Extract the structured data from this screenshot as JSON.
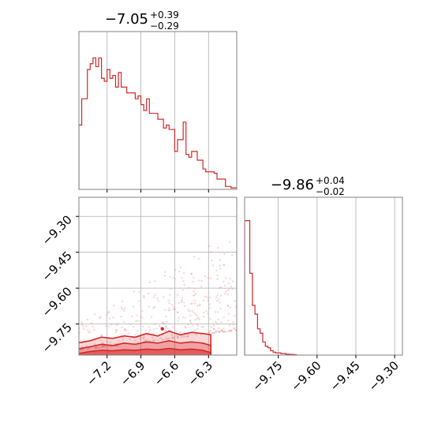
{
  "chart_data": {
    "type": "corner",
    "color": "#d62728",
    "grid": true,
    "panels": [
      {
        "id": "hist-1",
        "type": "histogram",
        "title_main": "−7.05",
        "title_plus": "+0.39",
        "title_minus": "−0.29",
        "xlim": [
          -7.45,
          -6.05
        ],
        "ylim": [
          0,
          1.08
        ],
        "x_ticks": [
          -7.2,
          -6.9,
          -6.6,
          -6.3
        ],
        "bin_width": 0.025,
        "counts": [
          0.44,
          0.62,
          0.62,
          0.82,
          0.86,
          0.9,
          0.84,
          0.9,
          0.76,
          0.74,
          0.82,
          0.76,
          0.78,
          0.7,
          0.8,
          0.7,
          0.7,
          0.66,
          0.66,
          0.66,
          0.62,
          0.64,
          0.58,
          0.54,
          0.62,
          0.52,
          0.52,
          0.52,
          0.48,
          0.48,
          0.42,
          0.44,
          0.41,
          0.41,
          0.26,
          0.34,
          0.34,
          0.46,
          0.24,
          0.22,
          0.26,
          0.26,
          0.2,
          0.2,
          0.14,
          0.12,
          0.12,
          0.12,
          0.11,
          0.07,
          0.07,
          0.07,
          0.02,
          0.02,
          0.01,
          0.01
        ]
      },
      {
        "id": "hist-2",
        "type": "histogram",
        "title_main": "−9.86",
        "title_plus": "+0.04",
        "title_minus": "−0.02",
        "xlim": [
          -9.88,
          -9.27
        ],
        "ylim": [
          0,
          1.08
        ],
        "x_ticks": [
          -9.75,
          -9.6,
          -9.45,
          -9.3
        ],
        "x_tick_labels": [
          "−9.75",
          "−9.60",
          "−9.45",
          "−9.30"
        ],
        "bin_width": 0.01,
        "counts": [
          0.92,
          0.92,
          0.56,
          0.34,
          0.28,
          0.18,
          0.15,
          0.09,
          0.06,
          0.05,
          0.03,
          0.02,
          0.015,
          0.015,
          0.01,
          0.01,
          0.006,
          0.005,
          0.004,
          0.003
        ]
      },
      {
        "id": "contour-2d",
        "type": "scatter_contour",
        "xlim": [
          -7.45,
          -6.05
        ],
        "ylim": [
          -9.88,
          -9.22
        ],
        "x_ticks": [
          -7.2,
          -6.9,
          -6.6,
          -6.3
        ],
        "x_tick_labels": [
          "−7.2",
          "−6.9",
          "−6.6",
          "−6.3"
        ],
        "y_ticks": [
          -9.3,
          -9.45,
          -9.6,
          -9.75
        ],
        "y_tick_labels": [
          "−9.30",
          "−9.45",
          "−9.60",
          "−9.75"
        ]
      }
    ]
  }
}
